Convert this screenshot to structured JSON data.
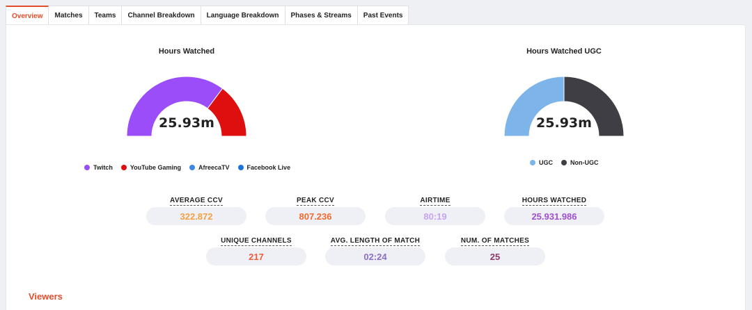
{
  "tabs": [
    {
      "label": "Overview",
      "active": true
    },
    {
      "label": "Matches",
      "active": false
    },
    {
      "label": "Teams",
      "active": false
    },
    {
      "label": "Channel Breakdown",
      "active": false
    },
    {
      "label": "Language Breakdown",
      "active": false
    },
    {
      "label": "Phases & Streams",
      "active": false
    },
    {
      "label": "Past Events",
      "active": false
    }
  ],
  "hours_watched": {
    "title": "Hours Watched",
    "center_value": "25.93m",
    "slices": [
      {
        "name": "Twitch",
        "value": 0.705,
        "color": "#9b4dfa"
      },
      {
        "name": "YouTube Gaming",
        "value": 0.295,
        "color": "#dd0f0f"
      },
      {
        "name": "AfreecaTV",
        "value": 0,
        "color": "#3d85e6"
      },
      {
        "name": "Facebook Live",
        "value": 0,
        "color": "#1a73d9"
      }
    ]
  },
  "hours_watched_ugc": {
    "title": "Hours Watched UGC",
    "center_value": "25.93m",
    "slices": [
      {
        "name": "UGC",
        "value": 0.5,
        "color": "#7db4ea"
      },
      {
        "name": "Non-UGC",
        "value": 0.5,
        "color": "#3e3e44"
      }
    ]
  },
  "stats_row1": [
    {
      "label": "AVERAGE CCV",
      "value": "322.872",
      "color": "#f5a042"
    },
    {
      "label": "PEAK CCV",
      "value": "807.236",
      "color": "#f26a2e"
    },
    {
      "label": "AIRTIME",
      "value": "80:19",
      "color": "#c9a3f2"
    },
    {
      "label": "HOURS WATCHED",
      "value": "25.931.986",
      "color": "#a04fd1"
    }
  ],
  "stats_row2": [
    {
      "label": "UNIQUE CHANNELS",
      "value": "217",
      "color": "#ee5a3c"
    },
    {
      "label": "AVG. LENGTH OF MATCH",
      "value": "02:24",
      "color": "#8a6fc7"
    },
    {
      "label": "NUM. OF MATCHES",
      "value": "25",
      "color": "#8a3b6e"
    }
  ],
  "section": {
    "title": "Viewers"
  }
}
